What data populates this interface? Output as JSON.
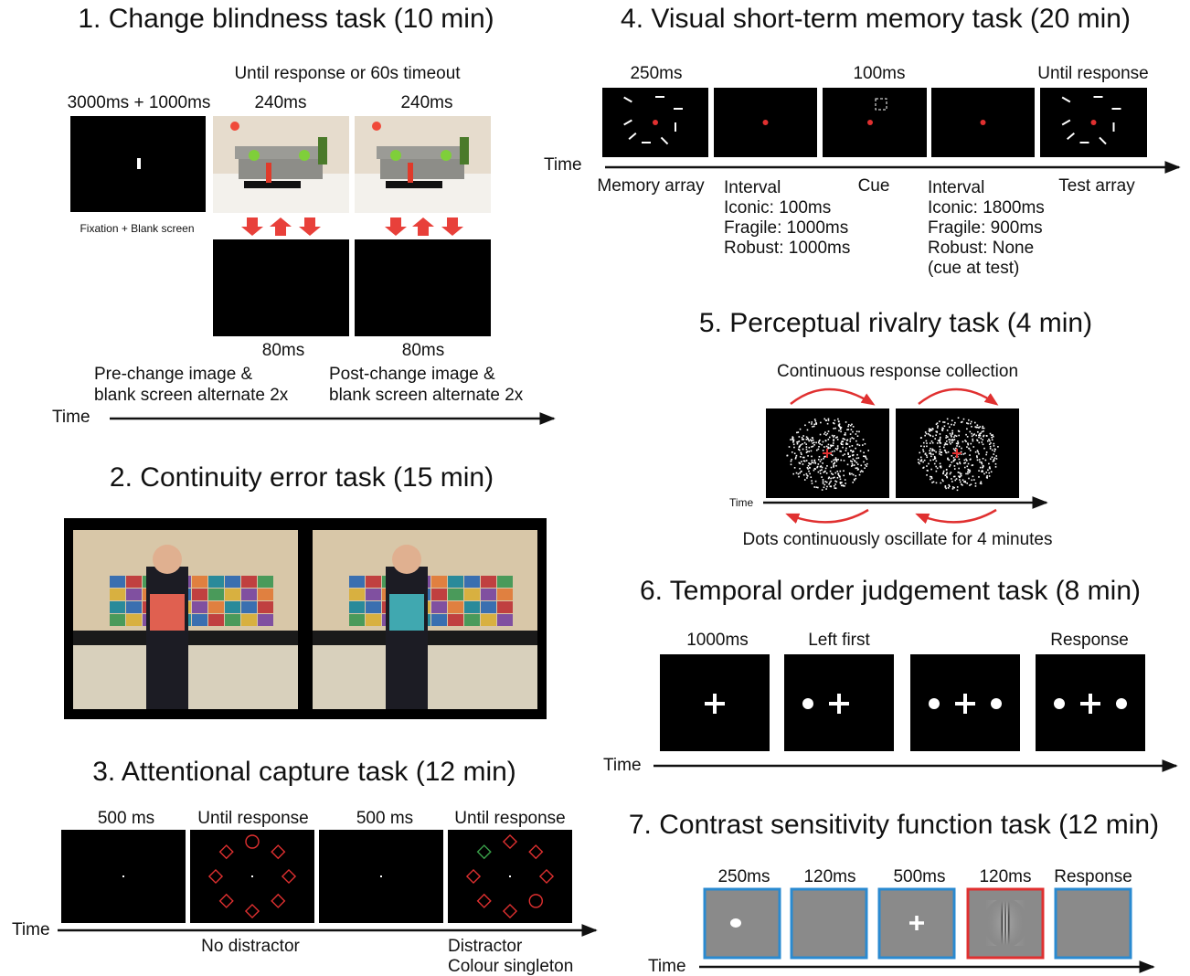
{
  "panels": [
    {
      "title": "1. Change blindness task (10 min)",
      "labels": [
        "Until response or 60s timeout",
        "3000ms + 1000ms",
        "240ms",
        "240ms",
        "Fixation + Blank screen",
        "80ms",
        "80ms",
        "Pre-change image &",
        "blank screen alternate 2x",
        "Post-change image &",
        "blank screen alternate 2x",
        "Time"
      ]
    },
    {
      "title": "2. Continuity error task (15 min)"
    },
    {
      "title": "3. Attentional capture task (12 min)",
      "labels": [
        "500 ms",
        "Until response",
        "500 ms",
        "Until response",
        "Time",
        "No distractor",
        "Distractor",
        "Colour singleton"
      ]
    },
    {
      "title": "4. Visual short-term memory task (20 min)",
      "labels": [
        "250ms",
        "100ms",
        "Until response",
        "Time",
        "Memory array",
        "Interval",
        "Iconic: 100ms",
        "Fragile: 1000ms",
        "Robust: 1000ms",
        "Cue",
        "Interval",
        "Iconic: 1800ms",
        "Fragile: 900ms",
        "Robust: None",
        "(cue at test)",
        "Test array"
      ]
    },
    {
      "title": "5. Perceptual rivalry task (4 min)",
      "labels": [
        "Continuous response collection",
        "Time",
        "Dots continuously oscillate for 4 minutes"
      ]
    },
    {
      "title": "6. Temporal order judgement task (8 min)",
      "labels": [
        "1000ms",
        "Left first",
        "Response",
        "Time"
      ]
    },
    {
      "title": "7. Contrast sensitivity function task (12 min)",
      "labels": [
        "250ms",
        "120ms",
        "500ms",
        "120ms",
        "Response",
        "Time"
      ]
    }
  ]
}
